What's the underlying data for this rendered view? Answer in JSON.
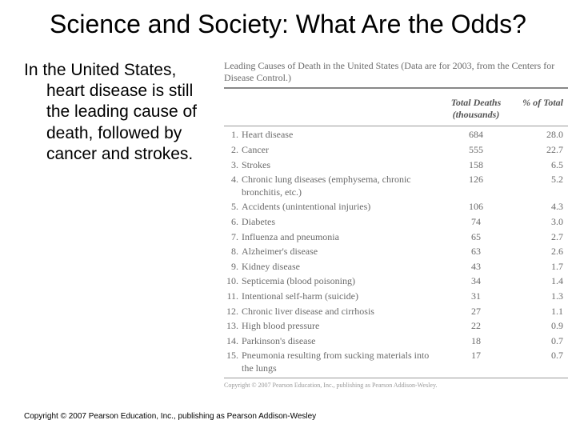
{
  "title": "Science and Society: What Are the Odds?",
  "body_first": "In the United States,",
  "body_rest": "heart disease is still the leading cause of death, followed by cancer and strokes.",
  "table": {
    "caption": "Leading Causes of Death in the United States (Data are for 2003, from the Centers for Disease Control.)",
    "head_deaths_l1": "Total Deaths",
    "head_deaths_l2": "(thousands)",
    "head_pct": "% of Total",
    "rows": [
      {
        "n": "1.",
        "name": "Heart disease",
        "deaths": "684",
        "pct": "28.0"
      },
      {
        "n": "2.",
        "name": "Cancer",
        "deaths": "555",
        "pct": "22.7"
      },
      {
        "n": "3.",
        "name": "Strokes",
        "deaths": "158",
        "pct": "6.5"
      },
      {
        "n": "4.",
        "name": "Chronic lung diseases (emphysema, chronic bronchitis, etc.)",
        "deaths": "126",
        "pct": "5.2"
      },
      {
        "n": "5.",
        "name": "Accidents (unintentional injuries)",
        "deaths": "106",
        "pct": "4.3"
      },
      {
        "n": "6.",
        "name": "Diabetes",
        "deaths": "74",
        "pct": "3.0"
      },
      {
        "n": "7.",
        "name": "Influenza and pneumonia",
        "deaths": "65",
        "pct": "2.7"
      },
      {
        "n": "8.",
        "name": "Alzheimer's disease",
        "deaths": "63",
        "pct": "2.6"
      },
      {
        "n": "9.",
        "name": "Kidney disease",
        "deaths": "43",
        "pct": "1.7"
      },
      {
        "n": "10.",
        "name": "Septicemia (blood poisoning)",
        "deaths": "34",
        "pct": "1.4"
      },
      {
        "n": "11.",
        "name": "Intentional self-harm (suicide)",
        "deaths": "31",
        "pct": "1.3"
      },
      {
        "n": "12.",
        "name": "Chronic liver disease and cirrhosis",
        "deaths": "27",
        "pct": "1.1"
      },
      {
        "n": "13.",
        "name": "High blood pressure",
        "deaths": "22",
        "pct": "0.9"
      },
      {
        "n": "14.",
        "name": "Parkinson's disease",
        "deaths": "18",
        "pct": "0.7"
      },
      {
        "n": "15.",
        "name": "Pneumonia resulting from sucking materials into the lungs",
        "deaths": "17",
        "pct": "0.7"
      }
    ],
    "inner_copyright": "Copyright © 2007 Pearson Education, Inc., publishing as Pearson Addison-Wesley."
  },
  "footer": "Copyright © 2007 Pearson Education, Inc., publishing as Pearson Addison-Wesley"
}
